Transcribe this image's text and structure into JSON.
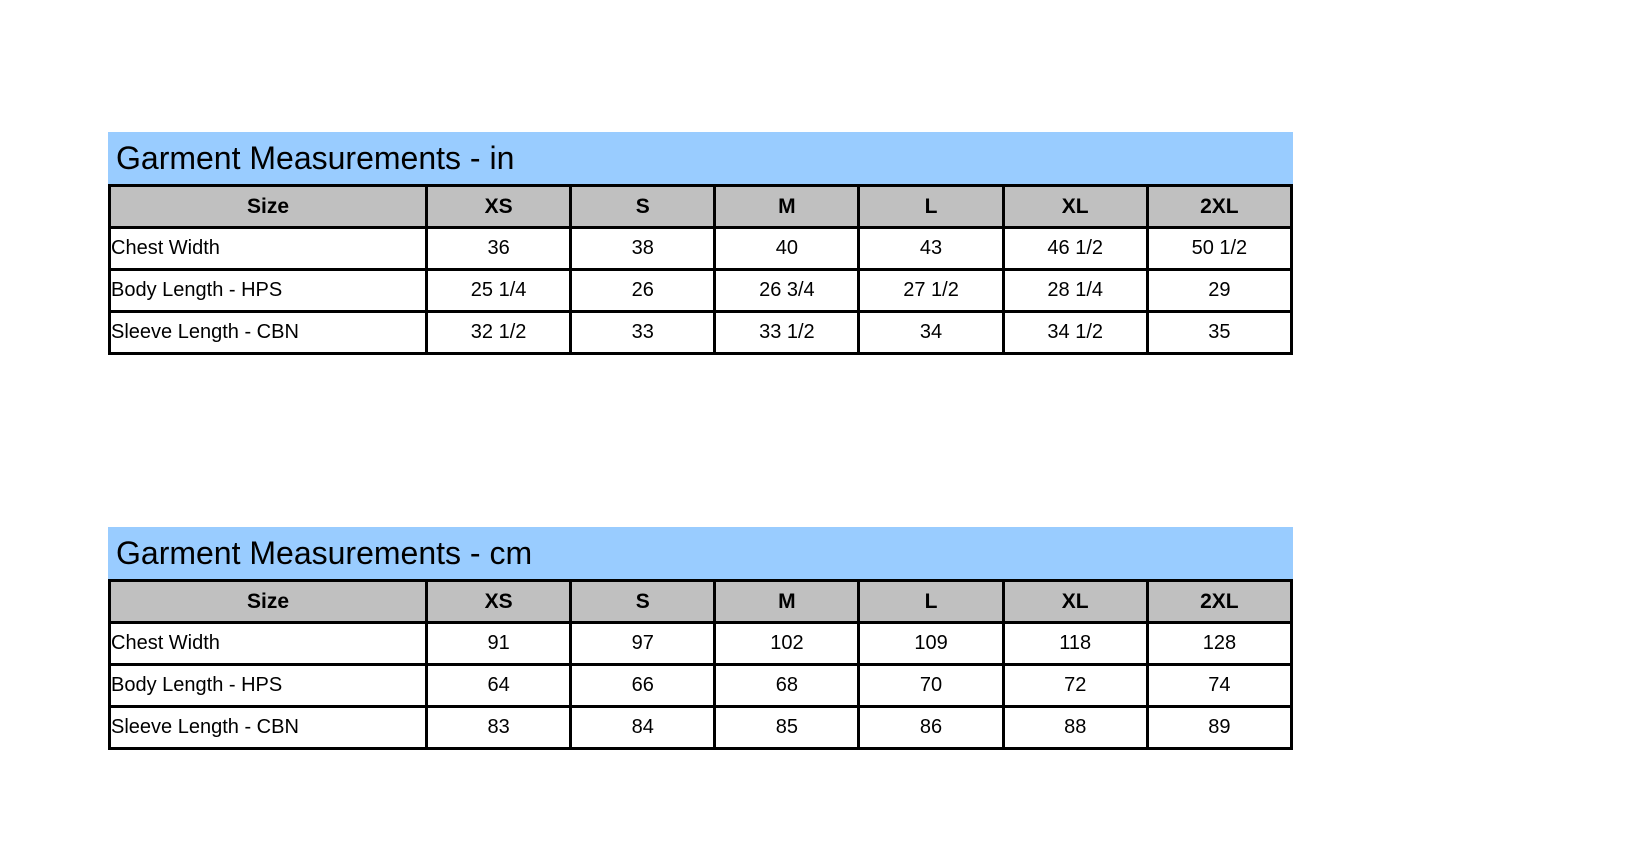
{
  "colors": {
    "page_background": "#FFFFFF",
    "title_background": "#99CCFF",
    "header_background": "#C0C0C0",
    "border": "#000000",
    "text": "#000000"
  },
  "tables": [
    {
      "id": "in",
      "title": "Garment Measurements - in",
      "size_header": "Size",
      "size_columns": [
        "XS",
        "S",
        "M",
        "L",
        "XL",
        "2XL"
      ],
      "rows": [
        {
          "label": "Chest Width",
          "values": [
            "36",
            "38",
            "40",
            "43",
            "46 1/2",
            "50 1/2"
          ]
        },
        {
          "label": "Body Length - HPS",
          "values": [
            "25 1/4",
            "26",
            "26 3/4",
            "27 1/2",
            "28 1/4",
            "29"
          ]
        },
        {
          "label": "Sleeve Length - CBN",
          "values": [
            "32 1/2",
            "33",
            "33 1/2",
            "34",
            "34 1/2",
            "35"
          ]
        }
      ]
    },
    {
      "id": "cm",
      "title": "Garment Measurements - cm",
      "size_header": "Size",
      "size_columns": [
        "XS",
        "S",
        "M",
        "L",
        "XL",
        "2XL"
      ],
      "rows": [
        {
          "label": "Chest Width",
          "values": [
            "91",
            "97",
            "102",
            "109",
            "118",
            "128"
          ]
        },
        {
          "label": "Body Length - HPS",
          "values": [
            "64",
            "66",
            "68",
            "70",
            "72",
            "74"
          ]
        },
        {
          "label": "Sleeve Length - CBN",
          "values": [
            "83",
            "84",
            "85",
            "86",
            "88",
            "89"
          ]
        }
      ]
    }
  ]
}
